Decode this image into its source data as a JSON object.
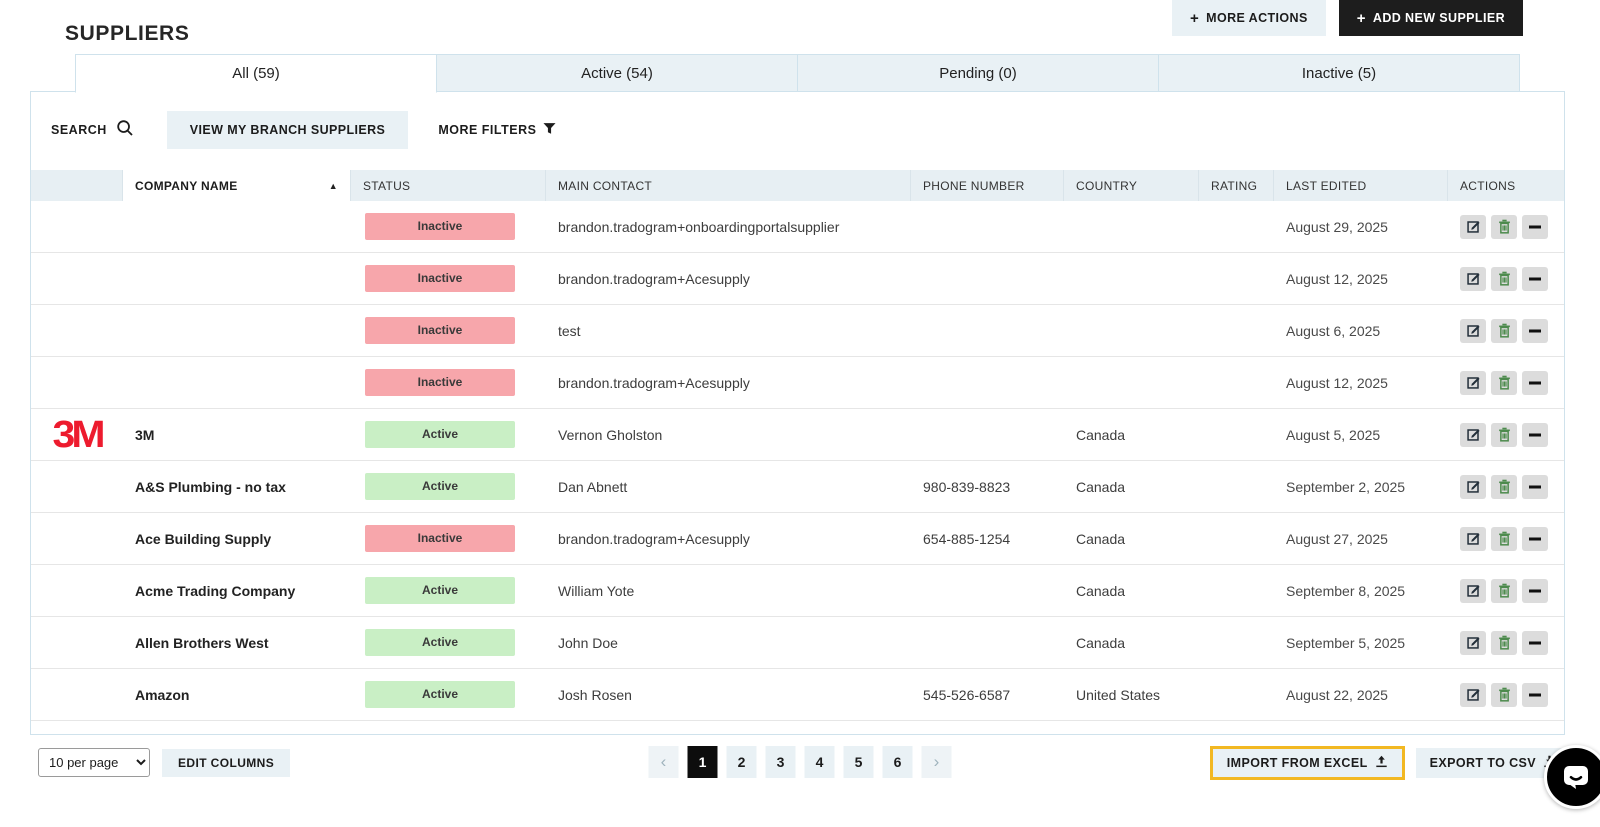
{
  "title": "SUPPLIERS",
  "topbar": {
    "more_actions": "MORE ACTIONS",
    "add_new_supplier": "ADD NEW SUPPLIER"
  },
  "tabs": [
    {
      "label": "All (59)",
      "active": true
    },
    {
      "label": "Active (54)",
      "active": false
    },
    {
      "label": "Pending (0)",
      "active": false
    },
    {
      "label": "Inactive (5)",
      "active": false
    }
  ],
  "filters": {
    "search_label": "SEARCH",
    "view_branch": "VIEW MY BRANCH SUPPLIERS",
    "more_filters": "MORE FILTERS"
  },
  "table": {
    "columns": [
      "",
      "COMPANY NAME",
      "STATUS",
      "MAIN CONTACT",
      "PHONE NUMBER",
      "COUNTRY",
      "RATING",
      "LAST EDITED",
      "ACTIONS"
    ],
    "sorted_column": "COMPANY NAME",
    "sort_direction": "asc",
    "rows": [
      {
        "logo": "",
        "company": "",
        "status": "Inactive",
        "contact": "brandon.tradogram+onboardingportalsupplier",
        "phone": "",
        "country": "",
        "rating": "",
        "last_edited": "August 29, 2025"
      },
      {
        "logo": "",
        "company": "",
        "status": "Inactive",
        "contact": "brandon.tradogram+Acesupply",
        "phone": "",
        "country": "",
        "rating": "",
        "last_edited": "August 12, 2025"
      },
      {
        "logo": "",
        "company": "",
        "status": "Inactive",
        "contact": "test",
        "phone": "",
        "country": "",
        "rating": "",
        "last_edited": "August 6, 2025"
      },
      {
        "logo": "",
        "company": "",
        "status": "Inactive",
        "contact": "brandon.tradogram+Acesupply",
        "phone": "",
        "country": "",
        "rating": "",
        "last_edited": "August 12, 2025"
      },
      {
        "logo": "3M",
        "company": "3M",
        "status": "Active",
        "contact": "Vernon Gholston",
        "phone": "",
        "country": "Canada",
        "rating": "",
        "last_edited": "August 5, 2025"
      },
      {
        "logo": "",
        "company": "A&S Plumbing - no tax",
        "status": "Active",
        "contact": "Dan Abnett",
        "phone": "980-839-8823",
        "country": "Canada",
        "rating": "",
        "last_edited": "September 2, 2025"
      },
      {
        "logo": "",
        "company": "Ace Building Supply",
        "status": "Inactive",
        "contact": "brandon.tradogram+Acesupply",
        "phone": "654-885-1254",
        "country": "Canada",
        "rating": "",
        "last_edited": "August 27, 2025"
      },
      {
        "logo": "",
        "company": "Acme Trading Company",
        "status": "Active",
        "contact": "William Yote",
        "phone": "",
        "country": "Canada",
        "rating": "",
        "last_edited": "September 8, 2025"
      },
      {
        "logo": "",
        "company": "Allen Brothers West",
        "status": "Active",
        "contact": "John Doe",
        "phone": "",
        "country": "Canada",
        "rating": "",
        "last_edited": "September 5, 2025"
      },
      {
        "logo": "",
        "company": "Amazon",
        "status": "Active",
        "contact": "Josh Rosen",
        "phone": "545-526-6587",
        "country": "United States",
        "rating": "",
        "last_edited": "August 22, 2025"
      }
    ]
  },
  "status_colors": {
    "Active": "#c9efc5",
    "Inactive": "#f7a6ab"
  },
  "footer": {
    "per_page": "10 per page",
    "edit_columns": "EDIT COLUMNS",
    "import_excel": "IMPORT FROM EXCEL",
    "export_csv": "EXPORT TO CSV"
  },
  "pagination": {
    "pages": [
      "1",
      "2",
      "3",
      "4",
      "5",
      "6"
    ],
    "current": "1",
    "prev": "‹",
    "next": "›"
  },
  "icons": {
    "plus": "+",
    "sort_asc": "▲",
    "search": "magnifier",
    "filter": "funnel",
    "edit": "pencil-square",
    "delete": "trash",
    "remove": "minus",
    "upload": "upload-arrow",
    "download": "download-arrow",
    "chat": "speech-bubble"
  },
  "colors": {
    "accent_highlight": "#f2b822",
    "light_button": "#e9f1f5",
    "dark_button": "#1d1d1d",
    "logo_red": "#ed1b2e",
    "header_bg": "#e7eff3"
  }
}
